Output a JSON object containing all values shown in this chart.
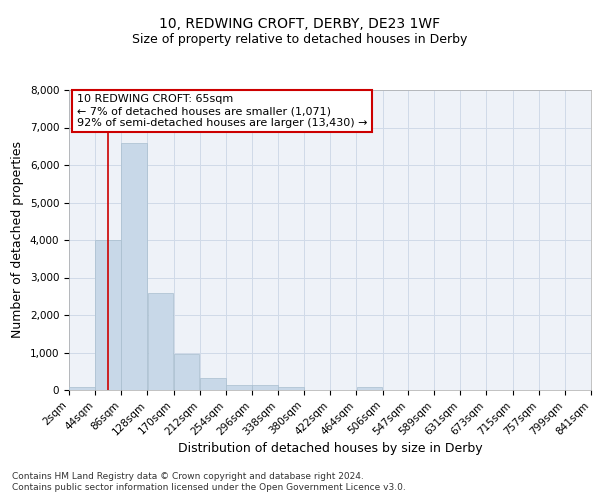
{
  "title": "10, REDWING CROFT, DERBY, DE23 1WF",
  "subtitle": "Size of property relative to detached houses in Derby",
  "xlabel": "Distribution of detached houses by size in Derby",
  "ylabel": "Number of detached properties",
  "bar_color": "#c8d8e8",
  "bar_edge_color": "#a8bece",
  "grid_color": "#d0dae8",
  "background_color": "#eef2f8",
  "bin_labels": [
    "2sqm",
    "44sqm",
    "86sqm",
    "128sqm",
    "170sqm",
    "212sqm",
    "254sqm",
    "296sqm",
    "338sqm",
    "380sqm",
    "422sqm",
    "464sqm",
    "506sqm",
    "547sqm",
    "589sqm",
    "631sqm",
    "673sqm",
    "715sqm",
    "757sqm",
    "799sqm",
    "841sqm"
  ],
  "bin_edges": [
    2,
    44,
    86,
    128,
    170,
    212,
    254,
    296,
    338,
    380,
    422,
    464,
    506,
    547,
    589,
    631,
    673,
    715,
    757,
    799,
    841
  ],
  "bar_heights": [
    70,
    4000,
    6600,
    2600,
    950,
    320,
    130,
    130,
    70,
    0,
    0,
    70,
    0,
    0,
    0,
    0,
    0,
    0,
    0,
    0
  ],
  "property_size": 65,
  "red_line_color": "#cc0000",
  "annotation_line1": "10 REDWING CROFT: 65sqm",
  "annotation_line2": "← 7% of detached houses are smaller (1,071)",
  "annotation_line3": "92% of semi-detached houses are larger (13,430) →",
  "annotation_box_color": "#ffffff",
  "annotation_border_color": "#cc0000",
  "ylim": [
    0,
    8000
  ],
  "yticks": [
    0,
    1000,
    2000,
    3000,
    4000,
    5000,
    6000,
    7000,
    8000
  ],
  "footer_line1": "Contains HM Land Registry data © Crown copyright and database right 2024.",
  "footer_line2": "Contains public sector information licensed under the Open Government Licence v3.0.",
  "title_fontsize": 10,
  "subtitle_fontsize": 9,
  "axis_label_fontsize": 9,
  "tick_fontsize": 7.5,
  "annotation_fontsize": 8,
  "footer_fontsize": 6.5
}
